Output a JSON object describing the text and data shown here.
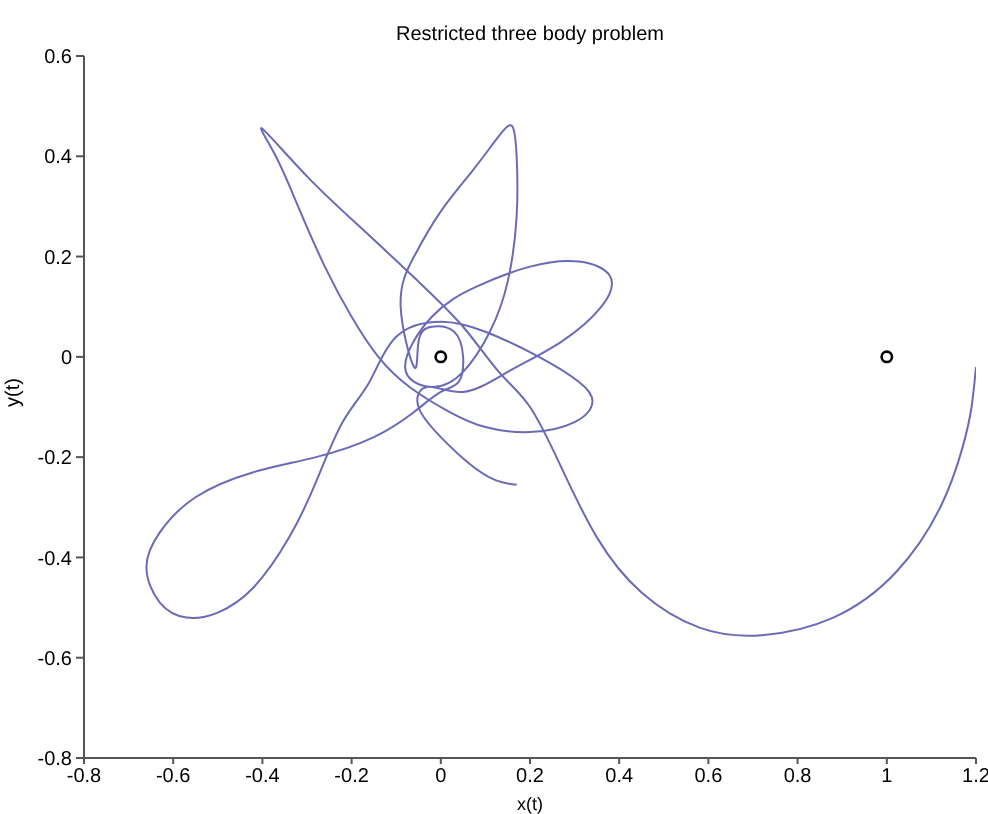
{
  "chart_data": {
    "type": "line",
    "title": "Restricted three body problem",
    "xlabel": "x(t)",
    "ylabel": "y(t)",
    "xlim": [
      -0.8,
      1.2
    ],
    "xticks": [
      -0.8,
      -0.6,
      -0.4,
      -0.2,
      0,
      0.2,
      0.4,
      0.6,
      0.8,
      1,
      1.2
    ],
    "ylim": [
      -0.8,
      0.6
    ],
    "yticks": [
      -0.8,
      -0.6,
      -0.4,
      -0.2,
      0,
      0.2,
      0.4,
      0.6
    ],
    "grid": false,
    "series": [
      {
        "color": "#6a6ab8",
        "marker": "none",
        "x": [
          1.2,
          1.19,
          1.17,
          1.12,
          1.02,
          0.88,
          0.72,
          0.58,
          0.45,
          0.35,
          0.27,
          0.2,
          0.13,
          0.05,
          -0.05,
          -0.17,
          -0.3,
          -0.4,
          -0.37,
          -0.32,
          -0.26,
          -0.2,
          -0.14,
          -0.07,
          0.02,
          0.1,
          0.2,
          0.3,
          0.34,
          0.31,
          0.22,
          0.1,
          0,
          -0.1,
          -0.16,
          -0.22,
          -0.28,
          -0.34,
          -0.42,
          -0.5,
          -0.57,
          -0.63,
          -0.66,
          -0.63,
          -0.55,
          -0.42,
          -0.28,
          -0.15,
          -0.06,
          0,
          0.04,
          0.05,
          0.03,
          -0.02,
          -0.05,
          -0.06,
          -0.09,
          -0.06,
          0,
          0.07,
          0.13,
          0.16,
          0.17,
          0.17,
          0.15,
          0.11,
          0.05,
          -0.02,
          -0.08,
          -0.02,
          0.08,
          0.2,
          0.31,
          0.38,
          0.36,
          0.27,
          0.15,
          0.05,
          -0.03,
          -0.05,
          0,
          0.06,
          0.12,
          0.17
        ],
        "values": [
          -0.02,
          -0.1,
          -0.18,
          -0.3,
          -0.43,
          -0.52,
          -0.555,
          -0.54,
          -0.47,
          -0.36,
          -0.22,
          -0.1,
          -0.03,
          0.06,
          0.15,
          0.25,
          0.36,
          0.455,
          0.4,
          0.3,
          0.18,
          0.08,
          0,
          -0.06,
          -0.11,
          -0.14,
          -0.15,
          -0.13,
          -0.09,
          -0.05,
          0,
          0.05,
          0.07,
          0.04,
          -0.05,
          -0.13,
          -0.25,
          -0.36,
          -0.46,
          -0.51,
          -0.52,
          -0.49,
          -0.42,
          -0.35,
          -0.28,
          -0.23,
          -0.2,
          -0.16,
          -0.11,
          -0.07,
          -0.05,
          0,
          0.05,
          0.06,
          0.03,
          -0.02,
          0.1,
          0.2,
          0.29,
          0.37,
          0.44,
          0.46,
          0.4,
          0.28,
          0.15,
          0.05,
          -0.03,
          -0.06,
          -0.02,
          0.08,
          0.14,
          0.18,
          0.19,
          0.16,
          0.1,
          0.03,
          -0.03,
          -0.07,
          -0.06,
          -0.1,
          -0.16,
          -0.21,
          -0.245,
          -0.255
        ]
      },
      {
        "type": "scatter",
        "color": "#000000",
        "marker": "circle",
        "x": [
          0,
          1
        ],
        "values": [
          0,
          0
        ]
      }
    ]
  }
}
